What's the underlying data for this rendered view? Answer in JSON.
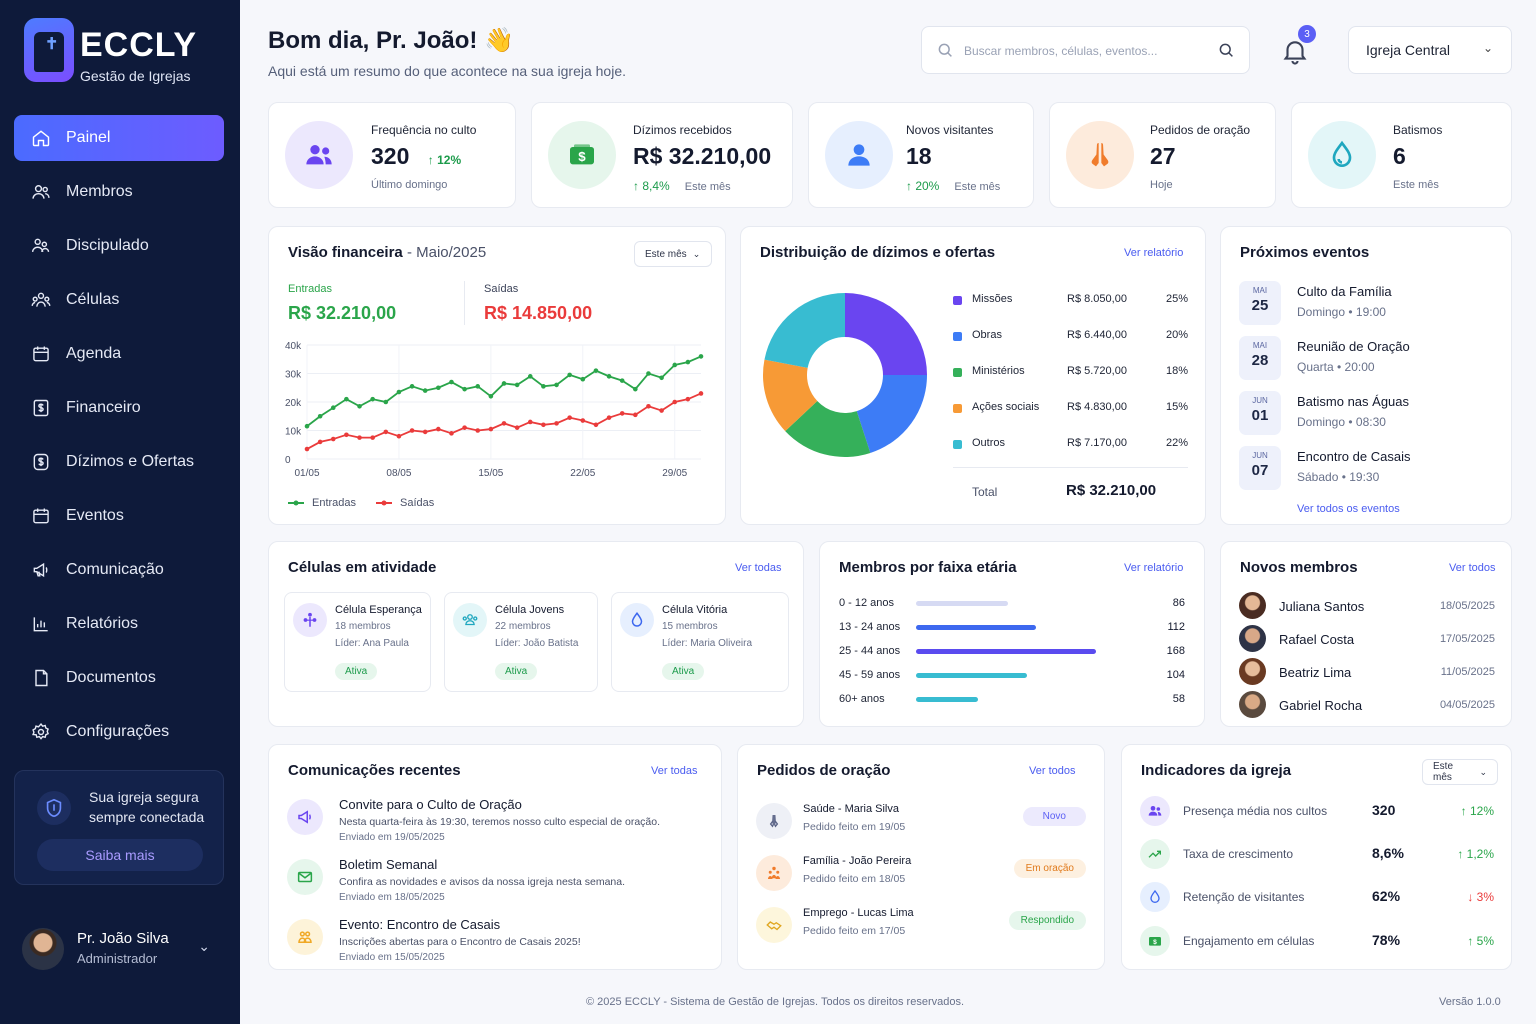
{
  "brand": {
    "name": "ECCLY",
    "tagline": "Gestão de Igrejas"
  },
  "colors": {
    "sidebar_bg": "#0e1a3a",
    "accent": "#5b5ff5",
    "entradas": "#2aa54a",
    "saidas": "#ea3b3b"
  },
  "nav": [
    {
      "label": "Painel",
      "icon": "home-icon",
      "active": true
    },
    {
      "label": "Membros",
      "icon": "users-icon"
    },
    {
      "label": "Discipulado",
      "icon": "discipleship-icon"
    },
    {
      "label": "Células",
      "icon": "group-icon"
    },
    {
      "label": "Agenda",
      "icon": "calendar-icon"
    },
    {
      "label": "Financeiro",
      "icon": "finance-icon"
    },
    {
      "label": "Dízimos e Ofertas",
      "icon": "coin-icon"
    },
    {
      "label": "Eventos",
      "icon": "calendar-icon"
    },
    {
      "label": "Comunicação",
      "icon": "megaphone-icon"
    },
    {
      "label": "Relatórios",
      "icon": "chart-icon"
    },
    {
      "label": "Documentos",
      "icon": "document-icon"
    },
    {
      "label": "Configurações",
      "icon": "gear-icon"
    }
  ],
  "secure": {
    "text_line1": "Sua igreja segura",
    "text_line2": "sempre conectada",
    "button": "Saiba mais"
  },
  "user": {
    "name": "Pr. João Silva",
    "role": "Administrador"
  },
  "header": {
    "greeting": "Bom dia, Pr. João! 👋",
    "subtitle": "Aqui está um resumo do que acontece na sua igreja hoje.",
    "search_placeholder": "Buscar membros, células, eventos...",
    "notifications": "3",
    "church": "Igreja Central"
  },
  "stats": [
    {
      "label": "Frequência no culto",
      "value": "320",
      "trend": "↑ 12%",
      "sub": "Último domingo"
    },
    {
      "label": "Dízimos recebidos",
      "value": "R$ 32.210,00",
      "trend": "↑ 8,4%",
      "sub": "Este mês"
    },
    {
      "label": "Novos visitantes",
      "value": "18",
      "trend": "↑ 20%",
      "sub": "Este mês"
    },
    {
      "label": "Pedidos de oração",
      "value": "27",
      "trend": "",
      "sub": "Hoje"
    },
    {
      "label": "Batismos",
      "value": "6",
      "trend": "",
      "sub": "Este mês"
    }
  ],
  "finance": {
    "title": "Visão financeira",
    "period": "- Maio/2025",
    "filter": "Este mês",
    "entradas_label": "Entradas",
    "entradas_value": "R$ 32.210,00",
    "saidas_label": "Saídas",
    "saidas_value": "R$ 14.850,00"
  },
  "chart_data": {
    "type": "line",
    "x": [
      "01/05",
      "02/05",
      "03/05",
      "04/05",
      "05/05",
      "06/05",
      "07/05",
      "08/05",
      "09/05",
      "10/05",
      "11/05",
      "12/05",
      "13/05",
      "14/05",
      "15/05",
      "16/05",
      "17/05",
      "18/05",
      "19/05",
      "20/05",
      "21/05",
      "22/05",
      "23/05",
      "24/05",
      "25/05",
      "26/05",
      "27/05",
      "28/05",
      "29/05",
      "30/05",
      "31/05"
    ],
    "x_tick_labels": [
      "01/05",
      "08/05",
      "15/05",
      "22/05",
      "29/05"
    ],
    "y_tick_labels": [
      "0",
      "10k",
      "20k",
      "30k",
      "40k"
    ],
    "ylim": [
      0,
      40000
    ],
    "series": [
      {
        "name": "Entradas",
        "color": "#2aa54a",
        "values": [
          11500,
          15000,
          18000,
          21000,
          18500,
          21000,
          20000,
          23500,
          25500,
          24000,
          25000,
          27000,
          24500,
          25500,
          22000,
          26500,
          26000,
          29000,
          25500,
          26000,
          29500,
          28000,
          31000,
          29000,
          27500,
          24500,
          30000,
          28500,
          33000,
          34000,
          36000
        ]
      },
      {
        "name": "Saídas",
        "color": "#ea3b3b",
        "values": [
          3500,
          6000,
          7000,
          8500,
          7500,
          7500,
          9500,
          8000,
          10000,
          9500,
          10500,
          9000,
          11000,
          10000,
          10500,
          12500,
          11000,
          13000,
          12000,
          12500,
          14500,
          13500,
          12000,
          14500,
          16000,
          15500,
          18500,
          17000,
          20000,
          21000,
          23000
        ]
      }
    ]
  },
  "donut": {
    "title": "Distribuição de dízimos e ofertas",
    "link": "Ver relatório",
    "rows": [
      {
        "name": "Missões",
        "amount": "R$ 8.050,00",
        "pct": "25%",
        "value": 25,
        "color": "#6a45f0"
      },
      {
        "name": "Obras",
        "amount": "R$ 6.440,00",
        "pct": "20%",
        "value": 20,
        "color": "#3d7cf6"
      },
      {
        "name": "Ministérios",
        "amount": "R$ 5.720,00",
        "pct": "18%",
        "value": 18,
        "color": "#35b05a"
      },
      {
        "name": "Ações sociais",
        "amount": "R$ 4.830,00",
        "pct": "15%",
        "value": 15,
        "color": "#f79a36"
      },
      {
        "name": "Outros",
        "amount": "R$ 7.170,00",
        "pct": "22%",
        "value": 22,
        "color": "#38bcd1"
      }
    ],
    "total_label": "Total",
    "total_value": "R$ 32.210,00"
  },
  "events": {
    "title": "Próximos eventos",
    "link": "Ver todos os eventos",
    "items": [
      {
        "mon": "MAI",
        "day": "25",
        "title": "Culto da Família",
        "when": "Domingo  •  19:00"
      },
      {
        "mon": "MAI",
        "day": "28",
        "title": "Reunião de Oração",
        "when": "Quarta  •  20:00"
      },
      {
        "mon": "JUN",
        "day": "01",
        "title": "Batismo nas Águas",
        "when": "Domingo  •  08:30"
      },
      {
        "mon": "JUN",
        "day": "07",
        "title": "Encontro de Casais",
        "when": "Sábado  •  19:30"
      }
    ]
  },
  "cells": {
    "title": "Células em atividade",
    "link": "Ver todas",
    "items": [
      {
        "name": "Célula Esperança",
        "members": "18 membros",
        "leader": "Líder: Ana Paula",
        "status": "Ativa"
      },
      {
        "name": "Célula Jovens",
        "members": "22 membros",
        "leader": "Líder: João Batista",
        "status": "Ativa"
      },
      {
        "name": "Célula Vitória",
        "members": "15 membros",
        "leader": "Líder: Maria Oliveira",
        "status": "Ativa"
      }
    ]
  },
  "ages": {
    "title": "Membros por faixa etária",
    "link": "Ver relatório",
    "rows": [
      {
        "label": "0 - 12 anos",
        "value": 86,
        "color": "#d6daf3"
      },
      {
        "label": "13 - 24 anos",
        "value": 112,
        "color": "#3d68ef"
      },
      {
        "label": "25 - 44 anos",
        "value": 168,
        "color": "#5a4bef"
      },
      {
        "label": "45 - 59 anos",
        "value": 104,
        "color": "#38bcd1"
      },
      {
        "label": "60+ anos",
        "value": 58,
        "color": "#38bcd1"
      }
    ]
  },
  "new_members": {
    "title": "Novos membros",
    "link": "Ver todos",
    "items": [
      {
        "name": "Juliana Santos",
        "date": "18/05/2025"
      },
      {
        "name": "Rafael Costa",
        "date": "17/05/2025"
      },
      {
        "name": "Beatriz Lima",
        "date": "11/05/2025"
      },
      {
        "name": "Gabriel Rocha",
        "date": "04/05/2025"
      }
    ]
  },
  "communications": {
    "title": "Comunicações recentes",
    "link": "Ver todas",
    "items": [
      {
        "title": "Convite para o Culto de Oração",
        "desc": "Nesta quarta-feira às 19:30, teremos nosso culto especial de oração.",
        "sent": "Enviado em 19/05/2025"
      },
      {
        "title": "Boletim Semanal",
        "desc": "Confira as novidades e avisos da nossa igreja nesta semana.",
        "sent": "Enviado em 18/05/2025"
      },
      {
        "title": "Evento: Encontro de Casais",
        "desc": "Inscrições abertas para o Encontro de Casais 2025!",
        "sent": "Enviado em 15/05/2025"
      }
    ]
  },
  "prayers": {
    "title": "Pedidos de oração",
    "link": "Ver todos",
    "items": [
      {
        "title": "Saúde - Maria Silva",
        "date": "Pedido feito em 19/05",
        "tag": "Novo"
      },
      {
        "title": "Família - João Pereira",
        "date": "Pedido feito em 18/05",
        "tag": "Em oração"
      },
      {
        "title": "Emprego - Lucas Lima",
        "date": "Pedido feito em 17/05",
        "tag": "Respondido"
      }
    ]
  },
  "indicators": {
    "title": "Indicadores da igreja",
    "filter": "Este mês",
    "items": [
      {
        "label": "Presença média nos cultos",
        "value": "320",
        "trend": "↑ 12%",
        "up": true
      },
      {
        "label": "Taxa de crescimento",
        "value": "8,6%",
        "trend": "↑ 1,2%",
        "up": true
      },
      {
        "label": "Retenção de visitantes",
        "value": "62%",
        "trend": "↓ 3%",
        "up": false
      },
      {
        "label": "Engajamento em células",
        "value": "78%",
        "trend": "↑ 5%",
        "up": true
      }
    ]
  },
  "footer": {
    "copyright": "© 2025 ECCLY - Sistema de Gestão de Igrejas. Todos os direitos reservados.",
    "version": "Versão 1.0.0"
  }
}
